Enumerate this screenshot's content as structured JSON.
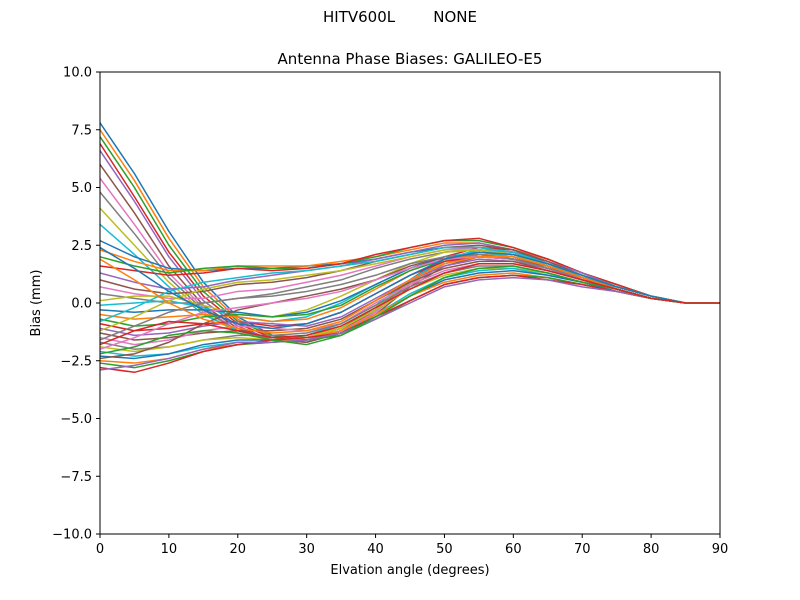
{
  "figure": {
    "suptitle": "HITV600L        NONE"
  },
  "chart_data": {
    "type": "line",
    "title": "Antenna Phase Biases: GALILEO-E5",
    "xlabel": "Elvation angle (degrees)",
    "ylabel": "Bias (mm)",
    "xlim": [
      0,
      90
    ],
    "ylim": [
      -10,
      10
    ],
    "xticks": [
      0,
      10,
      20,
      30,
      40,
      50,
      60,
      70,
      80,
      90
    ],
    "yticks": [
      -10.0,
      -7.5,
      -5.0,
      -2.5,
      0.0,
      2.5,
      5.0,
      7.5,
      10.0
    ],
    "xtick_labels": [
      "0",
      "10",
      "20",
      "30",
      "40",
      "50",
      "60",
      "70",
      "80",
      "90"
    ],
    "ytick_labels": [
      "−10.0",
      "−7.5",
      "−5.0",
      "−2.5",
      "0.0",
      "2.5",
      "5.0",
      "7.5",
      "10.0"
    ],
    "grid": false,
    "legend": "none",
    "colors": [
      "#1f77b4",
      "#ff7f0e",
      "#2ca02c",
      "#d62728",
      "#9467bd",
      "#8c564b",
      "#e377c2",
      "#7f7f7f",
      "#bcbd22",
      "#17becf"
    ],
    "x": [
      0,
      5,
      10,
      15,
      20,
      25,
      30,
      35,
      40,
      45,
      50,
      55,
      60,
      65,
      70,
      75,
      80,
      85,
      90
    ],
    "series": [
      {
        "values": [
          7.8,
          5.6,
          3.1,
          0.9,
          -0.6,
          -1.4,
          -1.6,
          -1.2,
          -0.3,
          0.9,
          1.8,
          2.2,
          2.1,
          1.6,
          1.0,
          0.6,
          0.2,
          0.0,
          0.0
        ]
      },
      {
        "values": [
          7.5,
          5.3,
          2.8,
          0.7,
          -0.7,
          -1.5,
          -1.7,
          -1.3,
          -0.4,
          0.8,
          1.7,
          2.1,
          2.0,
          1.5,
          1.0,
          0.6,
          0.2,
          0.0,
          0.0
        ]
      },
      {
        "values": [
          7.2,
          5.0,
          2.5,
          0.5,
          -0.8,
          -1.4,
          -1.5,
          -1.1,
          -0.2,
          0.9,
          1.9,
          2.3,
          2.2,
          1.7,
          1.1,
          0.6,
          0.2,
          0.0,
          0.0
        ]
      },
      {
        "values": [
          6.9,
          4.6,
          2.2,
          0.3,
          -0.9,
          -1.5,
          -1.6,
          -1.2,
          -0.3,
          1.0,
          2.0,
          2.4,
          2.3,
          1.7,
          1.1,
          0.6,
          0.2,
          0.0,
          0.0
        ]
      },
      {
        "values": [
          6.6,
          4.4,
          2.0,
          0.1,
          -1.0,
          -1.6,
          -1.7,
          -1.3,
          -0.4,
          0.9,
          1.9,
          2.3,
          2.2,
          1.6,
          1.0,
          0.6,
          0.2,
          0.0,
          0.0
        ]
      },
      {
        "values": [
          6.0,
          3.9,
          1.6,
          -0.1,
          -1.1,
          -1.6,
          -1.7,
          -1.3,
          -0.5,
          0.7,
          1.6,
          2.0,
          1.9,
          1.5,
          1.0,
          0.6,
          0.2,
          0.0,
          0.0
        ]
      },
      {
        "values": [
          5.4,
          3.4,
          1.3,
          -0.2,
          -1.2,
          -1.6,
          -1.6,
          -1.2,
          -0.4,
          0.8,
          1.7,
          2.1,
          2.0,
          1.5,
          1.0,
          0.6,
          0.2,
          0.0,
          0.0
        ]
      },
      {
        "values": [
          4.8,
          3.0,
          1.1,
          -0.3,
          -1.2,
          -1.6,
          -1.5,
          -1.1,
          -0.3,
          0.9,
          1.8,
          2.2,
          2.1,
          1.6,
          1.0,
          0.6,
          0.2,
          0.0,
          0.0
        ]
      },
      {
        "values": [
          4.1,
          2.5,
          0.9,
          -0.4,
          -1.3,
          -1.6,
          -1.5,
          -1.0,
          -0.2,
          0.9,
          1.8,
          2.2,
          2.1,
          1.6,
          1.0,
          0.6,
          0.2,
          0.0,
          0.0
        ]
      },
      {
        "values": [
          3.4,
          2.1,
          0.7,
          -0.5,
          -1.2,
          -1.5,
          -1.4,
          -0.9,
          -0.1,
          1.0,
          1.9,
          2.3,
          2.2,
          1.7,
          1.1,
          0.6,
          0.2,
          0.0,
          0.0
        ]
      },
      {
        "values": [
          2.7,
          2.0,
          1.5,
          1.4,
          1.5,
          1.5,
          1.6,
          1.7,
          1.9,
          2.2,
          2.4,
          2.4,
          2.2,
          1.8,
          1.2,
          0.7,
          0.3,
          0.0,
          0.0
        ]
      },
      {
        "values": [
          2.3,
          1.8,
          1.4,
          1.4,
          1.6,
          1.6,
          1.6,
          1.8,
          2.0,
          2.3,
          2.6,
          2.6,
          2.3,
          1.9,
          1.3,
          0.7,
          0.3,
          0.0,
          0.0
        ]
      },
      {
        "values": [
          2.0,
          1.6,
          1.3,
          1.5,
          1.6,
          1.5,
          1.5,
          1.7,
          2.0,
          2.4,
          2.7,
          2.7,
          2.4,
          1.9,
          1.3,
          0.8,
          0.3,
          0.0,
          0.0
        ]
      },
      {
        "values": [
          1.6,
          1.4,
          1.2,
          1.3,
          1.5,
          1.4,
          1.5,
          1.7,
          2.1,
          2.4,
          2.7,
          2.8,
          2.4,
          1.9,
          1.3,
          0.8,
          0.3,
          0.0,
          0.0
        ]
      },
      {
        "values": [
          1.3,
          0.9,
          0.6,
          0.7,
          1.0,
          1.2,
          1.4,
          1.6,
          1.9,
          2.2,
          2.5,
          2.6,
          2.3,
          1.8,
          1.3,
          0.7,
          0.3,
          0.0,
          0.0
        ]
      },
      {
        "values": [
          1.0,
          0.6,
          0.4,
          0.5,
          0.8,
          0.9,
          1.1,
          1.4,
          1.8,
          2.1,
          2.4,
          2.5,
          2.3,
          1.8,
          1.2,
          0.7,
          0.3,
          0.0,
          0.0
        ]
      },
      {
        "values": [
          0.7,
          0.4,
          0.2,
          0.2,
          0.5,
          0.6,
          0.9,
          1.2,
          1.6,
          2.0,
          2.3,
          2.4,
          2.2,
          1.7,
          1.2,
          0.7,
          0.3,
          0.0,
          0.0
        ]
      },
      {
        "values": [
          0.4,
          0.2,
          0.0,
          0.0,
          0.2,
          0.4,
          0.7,
          1.0,
          1.5,
          1.9,
          2.2,
          2.3,
          2.1,
          1.7,
          1.2,
          0.7,
          0.3,
          0.0,
          0.0
        ]
      },
      {
        "values": [
          0.1,
          0.3,
          0.3,
          -0.1,
          -0.5,
          -0.6,
          -0.3,
          0.3,
          1.0,
          1.7,
          2.2,
          2.3,
          2.1,
          1.7,
          1.2,
          0.7,
          0.3,
          0.0,
          0.0
        ]
      },
      {
        "values": [
          -0.1,
          0.0,
          0.1,
          -0.2,
          -0.6,
          -0.8,
          -0.6,
          0.0,
          0.8,
          1.5,
          2.0,
          2.2,
          2.0,
          1.6,
          1.1,
          0.7,
          0.3,
          0.0,
          0.0
        ]
      },
      {
        "values": [
          -0.3,
          -0.4,
          -0.3,
          -0.3,
          -0.4,
          -0.6,
          -0.4,
          0.1,
          0.8,
          1.5,
          2.0,
          2.1,
          2.0,
          1.6,
          1.1,
          0.7,
          0.3,
          0.0,
          0.0
        ]
      },
      {
        "values": [
          -0.5,
          -0.7,
          -0.6,
          -0.5,
          -0.6,
          -0.8,
          -0.7,
          -0.2,
          0.6,
          1.4,
          1.9,
          2.1,
          2.0,
          1.6,
          1.1,
          0.7,
          0.3,
          0.0,
          0.0
        ]
      },
      {
        "values": [
          -0.7,
          -1.0,
          -0.9,
          -0.6,
          -0.5,
          -0.6,
          -0.5,
          -0.1,
          0.7,
          1.4,
          1.9,
          2.0,
          1.9,
          1.5,
          1.1,
          0.6,
          0.2,
          0.0,
          0.0
        ]
      },
      {
        "values": [
          -0.9,
          -1.2,
          -1.1,
          -0.9,
          -0.8,
          -1.0,
          -0.9,
          -0.4,
          0.4,
          1.2,
          1.8,
          2.0,
          1.9,
          1.5,
          1.1,
          0.6,
          0.2,
          0.0,
          0.0
        ]
      },
      {
        "values": [
          -1.1,
          -1.4,
          -1.3,
          -1.0,
          -0.8,
          -0.9,
          -1.0,
          -0.6,
          0.2,
          1.0,
          1.6,
          1.9,
          1.8,
          1.5,
          1.0,
          0.6,
          0.2,
          0.0,
          0.0
        ]
      },
      {
        "values": [
          -1.3,
          -1.6,
          -1.5,
          -1.3,
          -1.2,
          -1.2,
          -1.1,
          -0.7,
          0.1,
          0.9,
          1.5,
          1.8,
          1.8,
          1.4,
          1.0,
          0.6,
          0.2,
          0.0,
          0.0
        ]
      },
      {
        "values": [
          -1.5,
          -1.8,
          -1.6,
          -1.2,
          -1.0,
          -1.1,
          -1.2,
          -0.9,
          0.0,
          0.8,
          1.4,
          1.7,
          1.7,
          1.4,
          1.0,
          0.6,
          0.2,
          0.0,
          0.0
        ]
      },
      {
        "values": [
          -1.7,
          -2.0,
          -1.9,
          -1.6,
          -1.4,
          -1.4,
          -1.3,
          -0.9,
          -0.1,
          0.7,
          1.3,
          1.6,
          1.6,
          1.3,
          0.9,
          0.6,
          0.2,
          0.0,
          0.0
        ]
      },
      {
        "values": [
          -1.9,
          -2.1,
          -1.9,
          -1.6,
          -1.5,
          -1.6,
          -1.5,
          -1.1,
          -0.3,
          0.6,
          1.2,
          1.5,
          1.5,
          1.3,
          0.9,
          0.5,
          0.2,
          0.0,
          0.0
        ]
      },
      {
        "values": [
          -2.1,
          -2.3,
          -2.2,
          -1.9,
          -1.7,
          -1.7,
          -1.6,
          -1.3,
          -0.5,
          0.4,
          1.1,
          1.4,
          1.5,
          1.2,
          0.9,
          0.5,
          0.2,
          0.0,
          0.0
        ]
      },
      {
        "values": [
          -2.3,
          -2.4,
          -2.2,
          -1.8,
          -1.6,
          -1.6,
          -1.6,
          -1.3,
          -0.6,
          0.3,
          1.0,
          1.3,
          1.4,
          1.2,
          0.9,
          0.5,
          0.2,
          0.0,
          0.0
        ]
      },
      {
        "values": [
          -2.5,
          -2.6,
          -2.4,
          -2.0,
          -1.8,
          -1.7,
          -1.5,
          -1.2,
          -0.5,
          0.3,
          0.9,
          1.2,
          1.3,
          1.1,
          0.8,
          0.5,
          0.2,
          0.0,
          0.0
        ]
      },
      {
        "values": [
          -2.6,
          -2.8,
          -2.5,
          -2.1,
          -1.8,
          -1.7,
          -1.6,
          -1.4,
          -0.7,
          0.1,
          0.8,
          1.1,
          1.2,
          1.1,
          0.8,
          0.5,
          0.2,
          0.0,
          0.0
        ]
      },
      {
        "values": [
          -2.8,
          -3.0,
          -2.6,
          -2.1,
          -1.8,
          -1.6,
          -1.5,
          -1.3,
          -0.6,
          0.1,
          0.8,
          1.1,
          1.2,
          1.0,
          0.8,
          0.5,
          0.2,
          0.0,
          0.0
        ]
      },
      {
        "values": [
          -2.9,
          -2.7,
          -2.4,
          -2.0,
          -1.7,
          -1.7,
          -1.6,
          -1.3,
          -0.7,
          0.0,
          0.7,
          1.0,
          1.1,
          1.0,
          0.7,
          0.5,
          0.2,
          0.0,
          0.0
        ]
      },
      {
        "values": [
          -2.4,
          -2.2,
          -1.7,
          -0.9,
          -0.3,
          0.0,
          0.3,
          0.6,
          1.0,
          1.6,
          2.0,
          2.1,
          1.9,
          1.6,
          1.1,
          0.7,
          0.3,
          0.0,
          0.0
        ]
      },
      {
        "values": [
          -2.0,
          -1.5,
          -0.9,
          -0.4,
          -0.2,
          0.0,
          0.2,
          0.5,
          1.0,
          1.5,
          1.9,
          2.0,
          1.9,
          1.5,
          1.1,
          0.7,
          0.3,
          0.0,
          0.0
        ]
      },
      {
        "values": [
          -1.6,
          -1.0,
          -0.4,
          0.0,
          0.2,
          0.3,
          0.5,
          0.8,
          1.2,
          1.7,
          2.0,
          2.1,
          1.9,
          1.5,
          1.1,
          0.7,
          0.3,
          0.0,
          0.0
        ]
      },
      {
        "values": [
          -1.2,
          -0.6,
          0.1,
          0.6,
          0.9,
          1.0,
          1.2,
          1.4,
          1.7,
          2.0,
          2.3,
          2.3,
          2.1,
          1.7,
          1.2,
          0.7,
          0.3,
          0.0,
          0.0
        ]
      },
      {
        "values": [
          -0.8,
          -0.2,
          0.5,
          0.9,
          1.1,
          1.3,
          1.4,
          1.6,
          1.8,
          2.1,
          2.4,
          2.4,
          2.2,
          1.7,
          1.2,
          0.7,
          0.3,
          0.0,
          0.0
        ]
      },
      {
        "values": [
          2.4,
          1.5,
          0.5,
          -0.3,
          -0.9,
          -1.1,
          -0.9,
          -0.4,
          0.4,
          1.2,
          1.9,
          2.2,
          2.1,
          1.7,
          1.2,
          0.7,
          0.3,
          0.0,
          0.0
        ]
      },
      {
        "values": [
          1.9,
          1.0,
          0.0,
          -0.7,
          -1.1,
          -1.3,
          -1.2,
          -0.8,
          0.1,
          1.0,
          1.7,
          2.0,
          2.0,
          1.6,
          1.1,
          0.6,
          0.2,
          0.0,
          0.0
        ]
      },
      {
        "values": [
          -2.2,
          -1.9,
          -1.4,
          -1.2,
          -1.3,
          -1.6,
          -1.8,
          -1.4,
          -0.6,
          0.3,
          1.1,
          1.5,
          1.6,
          1.3,
          0.9,
          0.6,
          0.2,
          0.0,
          0.0
        ]
      },
      {
        "values": [
          -1.8,
          -1.2,
          -0.8,
          -0.9,
          -1.2,
          -1.5,
          -1.4,
          -1.0,
          -0.2,
          0.6,
          1.3,
          1.7,
          1.7,
          1.4,
          1.0,
          0.6,
          0.2,
          0.0,
          0.0
        ]
      }
    ]
  }
}
